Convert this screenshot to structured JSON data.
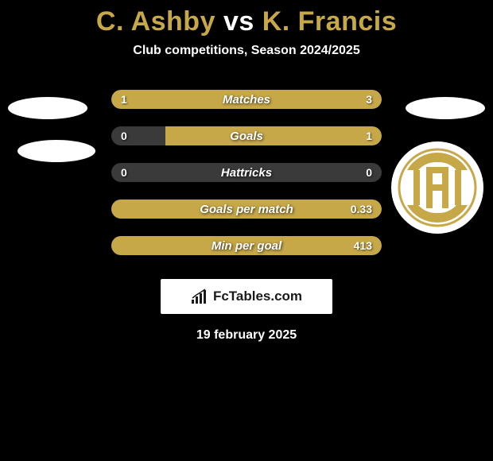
{
  "title": {
    "player1": "C. Ashby",
    "vs": "vs",
    "player2": "K. Francis",
    "player1_color": "#c7a849",
    "vs_color": "#ffffff",
    "player2_color": "#c7a849"
  },
  "subtitle": "Club competitions, Season 2024/2025",
  "bars_track_color": "#3a3a3a",
  "bars_accent_color": "#c7a849",
  "bars": [
    {
      "label": "Matches",
      "left_value": "1",
      "right_value": "3",
      "left_fill_pct": 20,
      "right_fill_pct": 80,
      "left_fill_color": "#c7a849",
      "right_fill_color": "#c7a849"
    },
    {
      "label": "Goals",
      "left_value": "0",
      "right_value": "1",
      "left_fill_pct": 0,
      "right_fill_pct": 80,
      "left_fill_color": "#3a3a3a",
      "right_fill_color": "#c7a849"
    },
    {
      "label": "Hattricks",
      "left_value": "0",
      "right_value": "0",
      "left_fill_pct": 0,
      "right_fill_pct": 0,
      "left_fill_color": "#3a3a3a",
      "right_fill_color": "#3a3a3a"
    },
    {
      "label": "Goals per match",
      "left_value": "",
      "right_value": "0.33",
      "left_fill_pct": 0,
      "right_fill_pct": 100,
      "left_fill_color": "#3a3a3a",
      "right_fill_color": "#c7a849"
    },
    {
      "label": "Min per goal",
      "left_value": "",
      "right_value": "413",
      "left_fill_pct": 0,
      "right_fill_pct": 100,
      "left_fill_color": "#3a3a3a",
      "right_fill_color": "#c7a849"
    }
  ],
  "footer_brand": "FcTables.com",
  "footer_date": "19 february 2025",
  "badge_color": "#c7a849",
  "background_color": "#000000"
}
